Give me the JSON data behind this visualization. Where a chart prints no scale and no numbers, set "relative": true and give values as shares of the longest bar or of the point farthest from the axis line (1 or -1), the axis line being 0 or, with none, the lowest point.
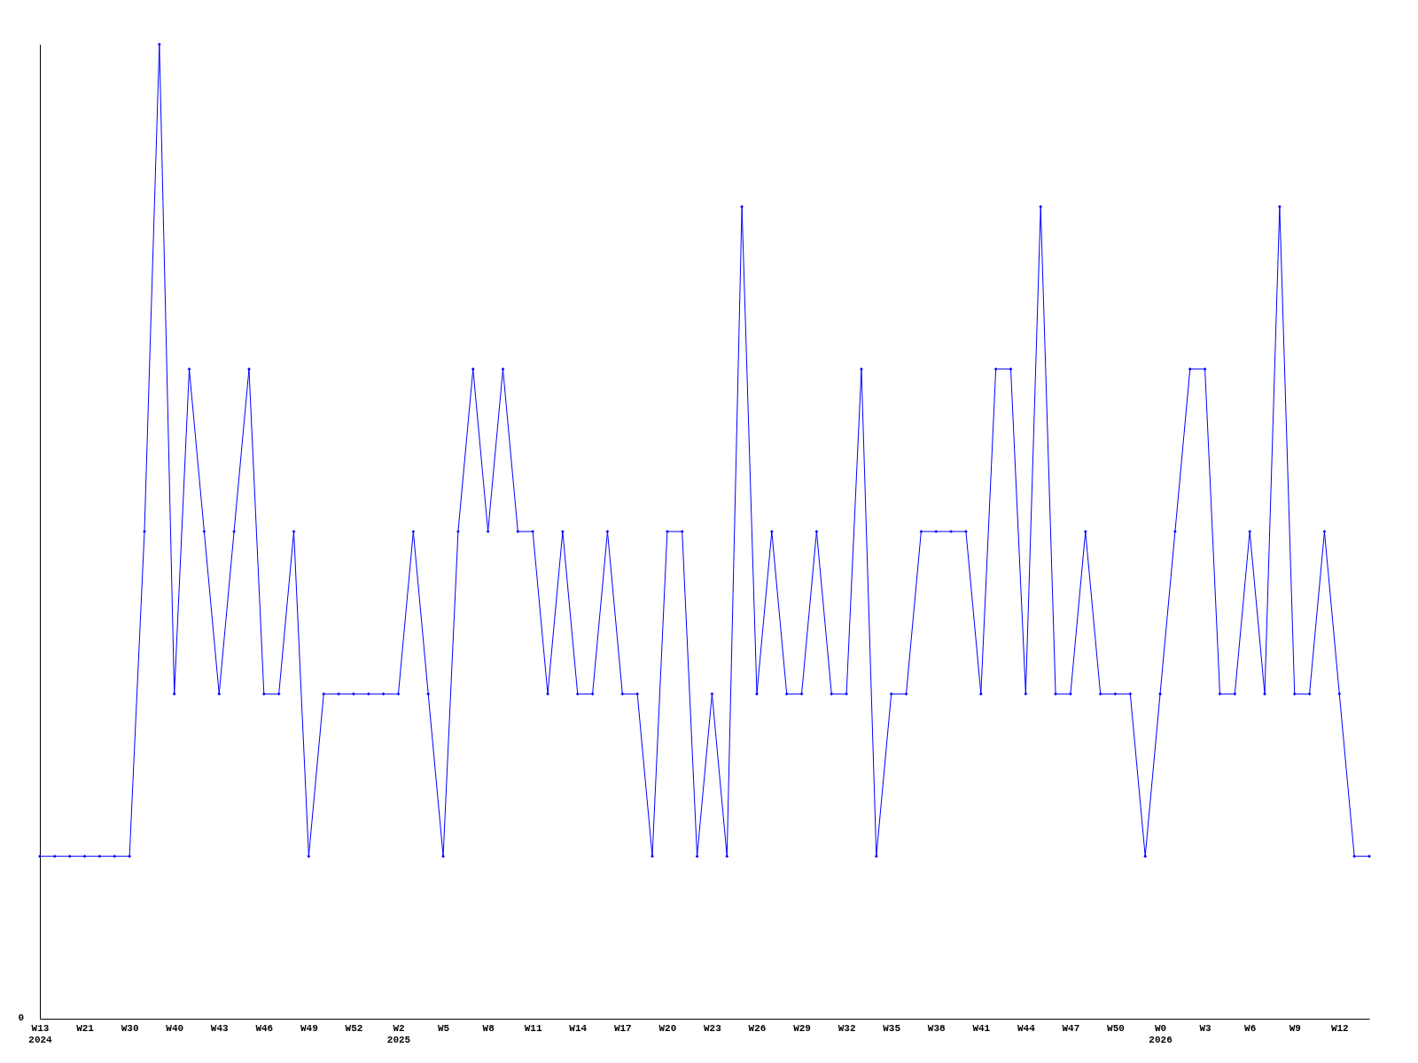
{
  "chart_data": {
    "type": "line",
    "relative": true,
    "color": "#0000ff",
    "marker": "diamond",
    "grid": false,
    "categories": [
      "W13\n2024",
      null,
      null,
      "W21",
      null,
      null,
      "W30",
      null,
      null,
      "W40",
      null,
      null,
      "W43",
      null,
      null,
      "W46",
      null,
      null,
      "W49",
      null,
      null,
      "W52",
      null,
      null,
      "W2\n2025",
      null,
      null,
      "W5",
      null,
      null,
      "W8",
      null,
      null,
      "W11",
      null,
      null,
      "W14",
      null,
      null,
      "W17",
      null,
      null,
      "W20",
      null,
      null,
      "W23",
      null,
      null,
      "W26",
      null,
      null,
      "W29",
      null,
      null,
      "W32",
      null,
      null,
      "W35",
      null,
      null,
      "W38",
      null,
      null,
      "W41",
      null,
      null,
      "W44",
      null,
      null,
      "W47",
      null,
      null,
      "W50",
      null,
      null,
      "W0\n2026",
      null,
      null,
      "W3",
      null,
      null,
      "W6",
      null,
      null,
      "W9",
      null,
      null,
      "W12",
      null,
      null
    ],
    "values": [
      0.1667,
      0.1667,
      0.1667,
      0.1667,
      0.1667,
      0.1667,
      0.1667,
      0.5,
      1,
      0.3333,
      0.6667,
      0.5,
      0.3333,
      0.5,
      0.6667,
      0.3333,
      0.3333,
      0.5,
      0.1667,
      0.3333,
      0.3333,
      0.3333,
      0.3333,
      0.3333,
      0.3333,
      0.5,
      0.3333,
      0.1667,
      0.5,
      0.6667,
      0.5,
      0.6667,
      0.5,
      0.5,
      0.3333,
      0.5,
      0.3333,
      0.3333,
      0.5,
      0.3333,
      0.3333,
      0.1667,
      0.5,
      0.5,
      0.1667,
      0.3333,
      0.1667,
      0.8333,
      0.3333,
      0.5,
      0.3333,
      0.3333,
      0.5,
      0.3333,
      0.3333,
      0.6667,
      0.1667,
      0.3333,
      0.3333,
      0.5,
      0.5,
      0.5,
      0.5,
      0.3333,
      0.6667,
      0.6667,
      0.3333,
      0.8333,
      0.3333,
      0.3333,
      0.5,
      0.3333,
      0.3333,
      0.3333,
      0.1667,
      0.3333,
      0.5,
      0.6667,
      0.6667,
      0.3333,
      0.3333,
      0.5,
      0.3333,
      0.8333,
      0.3333,
      0.3333,
      0.5,
      0.3333,
      0.1667,
      0.1667
    ],
    "annotations": [
      "0"
    ]
  }
}
